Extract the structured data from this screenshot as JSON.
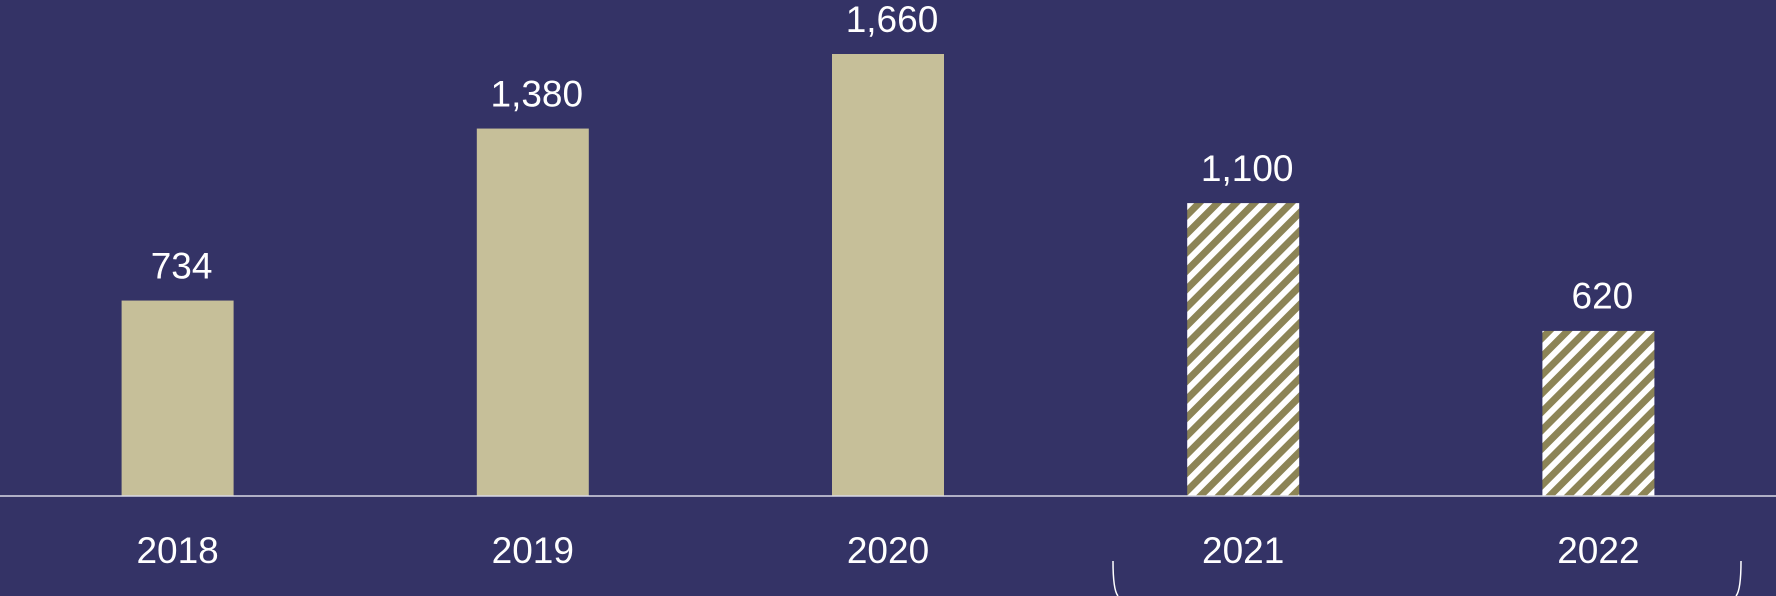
{
  "chart_data": {
    "type": "bar",
    "categories": [
      "2018",
      "2019",
      "2020",
      "2021",
      "2022"
    ],
    "values": [
      734,
      1380,
      1660,
      1100,
      620
    ],
    "value_labels": [
      "734",
      "1,380",
      "1,660",
      "1,100",
      "620"
    ],
    "color": "#c6bf99",
    "hatch_color": "#8c8456",
    "hatched": [
      false,
      false,
      false,
      true,
      true
    ]
  }
}
